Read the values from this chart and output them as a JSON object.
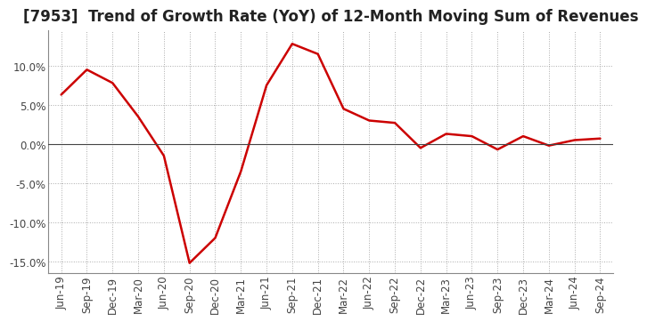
{
  "title": "[7953]  Trend of Growth Rate (YoY) of 12-Month Moving Sum of Revenues",
  "x_labels": [
    "Jun-19",
    "Sep-19",
    "Dec-19",
    "Mar-20",
    "Jun-20",
    "Sep-20",
    "Dec-20",
    "Mar-21",
    "Jun-21",
    "Sep-21",
    "Dec-21",
    "Mar-22",
    "Jun-22",
    "Sep-22",
    "Dec-22",
    "Mar-23",
    "Jun-23",
    "Sep-23",
    "Dec-23",
    "Mar-24",
    "Jun-24",
    "Sep-24"
  ],
  "y_values": [
    6.3,
    9.5,
    7.8,
    3.5,
    -1.5,
    -15.2,
    -12.0,
    -3.5,
    7.5,
    12.8,
    11.5,
    4.5,
    3.0,
    2.7,
    -0.5,
    1.3,
    1.0,
    -0.7,
    1.0,
    -0.2,
    0.5,
    0.7
  ],
  "line_color": "#cc0000",
  "line_width": 1.8,
  "ylim": [
    -16.5,
    14.5
  ],
  "yticks": [
    -15.0,
    -10.0,
    -5.0,
    0.0,
    5.0,
    10.0
  ],
  "grid_color": "#aaaaaa",
  "background_color": "#ffffff",
  "title_fontsize": 12,
  "tick_fontsize": 8.5,
  "zero_line_color": "#444444",
  "spine_color": "#888888"
}
